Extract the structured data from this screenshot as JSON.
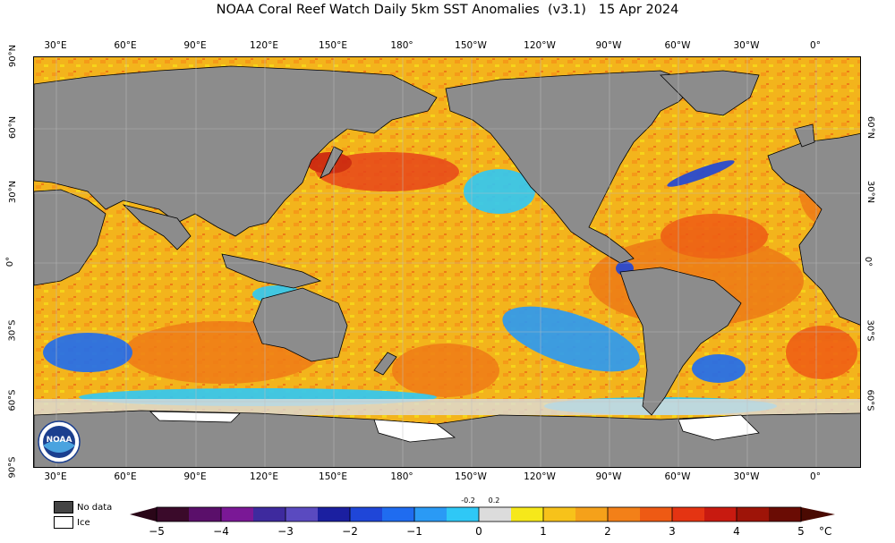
{
  "title": "NOAA Coral Reef Watch Daily 5km SST Anomalies  (v3.1)   15 Apr 2024",
  "lon_ticks": [
    "30°E",
    "60°E",
    "90°E",
    "120°E",
    "150°E",
    "180°",
    "150°W",
    "120°W",
    "90°W",
    "60°W",
    "30°W",
    "0°"
  ],
  "lat_ticks_left": [
    "90°N",
    "60°N",
    "30°N",
    "0°",
    "30°S",
    "60°S",
    "90°S"
  ],
  "lat_ticks_right": [
    "60°N",
    "30°N",
    "0°",
    "30°S",
    "60°S"
  ],
  "legend": {
    "no_data": "No data",
    "ice": "Ice"
  },
  "colorbar": {
    "ticks": [
      "−5",
      "−4",
      "−3",
      "−2",
      "−1",
      "0",
      "1",
      "2",
      "3",
      "4",
      "5"
    ],
    "small_ticks": [
      "-0.2",
      "0.2"
    ],
    "unit": "°C",
    "colors": [
      "#3a0a2a",
      "#5a0f6a",
      "#7a1896",
      "#3e2a9e",
      "#5a4ac0",
      "#1b1fa0",
      "#1f46d8",
      "#1f6cf0",
      "#2a9af5",
      "#2fc8f6",
      "#dcdcdc",
      "#f6e81a",
      "#f7c21a",
      "#f5a11a",
      "#f38018",
      "#ee5a14",
      "#e43412",
      "#c81a10",
      "#9e1408",
      "#6a0c04"
    ]
  },
  "colors": {
    "land": "#8c8c8c",
    "no_data": "#444444",
    "ice": "#ffffff",
    "ocean_base": "#f3b41c"
  },
  "logo_text": "NOAA"
}
